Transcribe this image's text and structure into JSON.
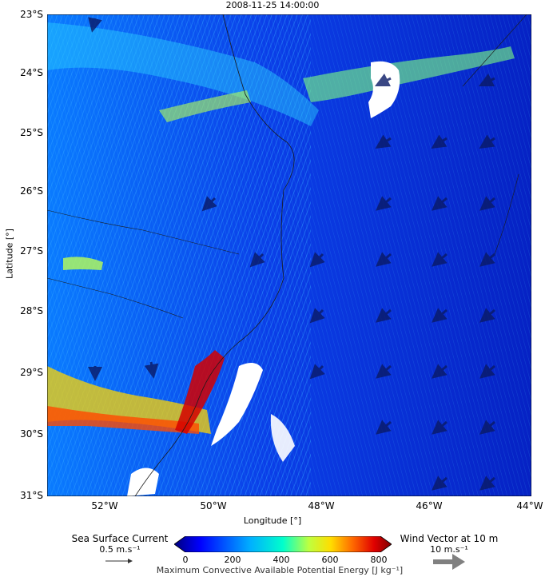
{
  "title": "2008-11-25 14:00:00",
  "x_axis_label": "Longitude [°]",
  "y_axis_label": "Latitude [°]",
  "x_ticks": [
    "52°W",
    "50°W",
    "48°W",
    "46°W",
    "44°W"
  ],
  "y_ticks": [
    "23°S",
    "24°S",
    "25°S",
    "26°S",
    "27°S",
    "28°S",
    "29°S",
    "30°S",
    "31°S"
  ],
  "colorbar": {
    "label": "Maximum Convective Available Potential Energy [J kg⁻¹]",
    "ticks": [
      "0",
      "200",
      "400",
      "600",
      "800"
    ],
    "colors": [
      "#00007f",
      "#0000ff",
      "#007fff",
      "#00ffff",
      "#7fff7f",
      "#ffff00",
      "#ff7f00",
      "#ff0000",
      "#7f0000"
    ]
  },
  "legend": {
    "current_label": "Sea Surface Current",
    "current_scale": "0.5 m.s⁻¹",
    "wind_label": "Wind Vector at 10 m",
    "wind_scale": "10 m.s⁻¹"
  }
}
